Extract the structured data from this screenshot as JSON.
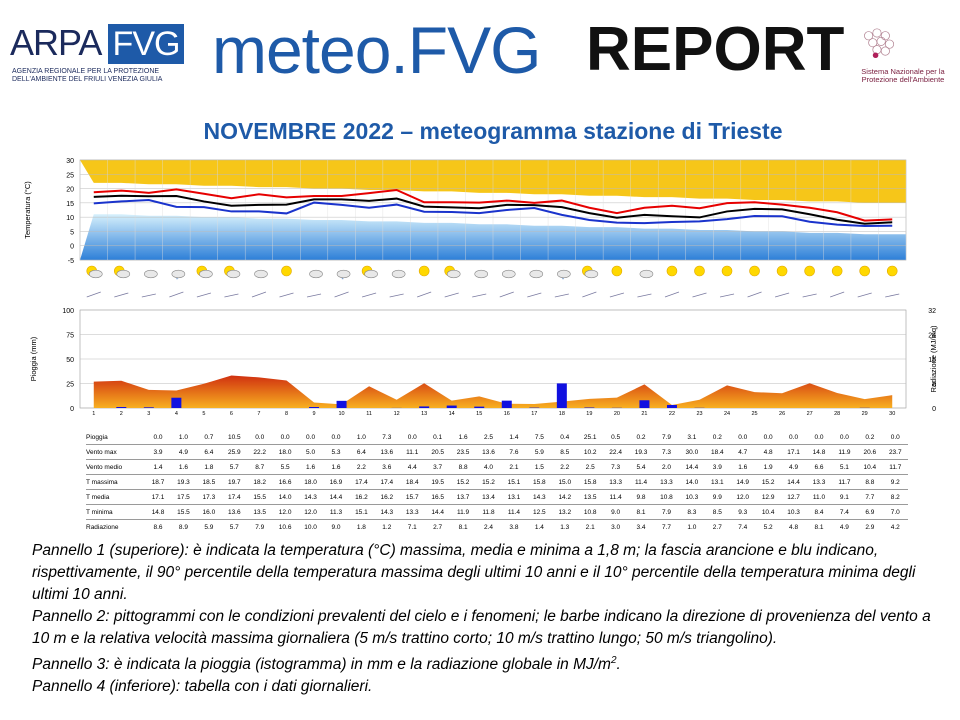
{
  "header": {
    "arpa_word": "ARPA",
    "fvg_box": "FVG",
    "arpa_subtitle": "agenzia regionale per la protezione dell'ambiente del friuli venezia giulia",
    "title_meteo": "meteo.FVG",
    "title_report": "REPORT",
    "snpa_text": "Sistema Nazionale per la Protezione dell'Ambiente"
  },
  "subtitle": "NOVEMBRE 2022 – meteogramma stazione di Trieste",
  "colors": {
    "brand_blue": "#1e5aa8",
    "band_orange": "#f5c000",
    "band_blue": "#6fc2f0",
    "tmax": "#e60000",
    "tmed": "#000000",
    "tmin": "#1a33cc",
    "rain_bar": "#1010e0",
    "radiation_fill": "#f07020"
  },
  "chart_data": [
    {
      "type": "line",
      "ylabel": "Temperatura (°C)",
      "ylim": [
        -5,
        30
      ],
      "yticks": [
        30,
        25,
        20,
        15,
        10,
        5,
        0,
        -5
      ],
      "grid": true,
      "x": [
        1,
        2,
        3,
        4,
        5,
        6,
        7,
        8,
        9,
        10,
        11,
        12,
        13,
        14,
        15,
        16,
        17,
        18,
        19,
        20,
        21,
        22,
        23,
        24,
        25,
        26,
        27,
        28,
        29,
        30
      ],
      "series": [
        {
          "key": "tmax",
          "values": [
            18.7,
            19.3,
            18.5,
            19.7,
            18.2,
            16.6,
            18.0,
            16.9,
            17.4,
            17.4,
            18.4,
            19.5,
            15.2,
            15.2,
            15.1,
            15.8,
            15.0,
            15.8,
            13.3,
            11.4,
            13.3,
            14.0,
            13.1,
            14.9,
            15.2,
            14.4,
            13.3,
            11.7,
            8.8,
            9.2
          ]
        },
        {
          "key": "tmed",
          "values": [
            17.1,
            17.5,
            17.3,
            17.4,
            15.5,
            14.0,
            14.3,
            14.4,
            16.2,
            16.2,
            15.7,
            16.5,
            13.7,
            13.4,
            13.1,
            14.3,
            14.2,
            13.5,
            11.4,
            9.8,
            10.8,
            10.3,
            9.9,
            12.0,
            12.9,
            12.7,
            11.0,
            9.1,
            7.7,
            8.2
          ]
        },
        {
          "key": "tmin",
          "values": [
            14.8,
            15.5,
            16.0,
            13.6,
            13.5,
            12.0,
            12.0,
            11.3,
            15.1,
            14.3,
            13.3,
            14.4,
            11.9,
            11.8,
            11.4,
            12.5,
            13.2,
            10.8,
            9.0,
            8.1,
            7.9,
            8.3,
            8.5,
            9.3,
            10.4,
            10.3,
            8.4,
            7.4,
            6.9,
            7.0
          ]
        },
        {
          "key": "p90_tmax_band",
          "values": [
            22,
            22,
            21.5,
            21.5,
            21,
            21,
            20.5,
            20.5,
            20,
            20,
            19.5,
            19.5,
            19,
            19,
            18.5,
            18.5,
            18,
            18,
            17.5,
            17.5,
            17,
            17,
            16.5,
            16.5,
            16,
            16,
            15.5,
            15.5,
            15,
            15
          ]
        },
        {
          "key": "p10_tmin_band",
          "values": [
            11,
            11,
            10.5,
            10.5,
            10,
            10,
            9.5,
            9.5,
            9,
            9,
            8.5,
            8.5,
            8,
            8,
            7.5,
            7.5,
            7,
            7,
            6.5,
            6.5,
            6,
            6,
            5.5,
            5.5,
            5,
            5,
            4.5,
            4.5,
            4,
            4
          ]
        }
      ]
    },
    {
      "type": "bar",
      "ylabel": "Pioggia (mm)",
      "y2label": "Radiazione (MJ/mq)",
      "ylim": [
        0,
        100
      ],
      "yticks": [
        100,
        75,
        50,
        25,
        0
      ],
      "y2lim": [
        0,
        32
      ],
      "y2ticks": [
        32,
        24,
        16,
        8,
        0
      ],
      "categories": [
        "1",
        "2",
        "3",
        "4",
        "5",
        "6",
        "7",
        "8",
        "9",
        "10",
        "11",
        "12",
        "13",
        "14",
        "15",
        "16",
        "17",
        "18",
        "19",
        "20",
        "21",
        "22",
        "23",
        "24",
        "25",
        "26",
        "27",
        "28",
        "29",
        "30"
      ],
      "series": [
        {
          "key": "pioggia",
          "values": [
            0.0,
            1.0,
            0.7,
            10.5,
            0.0,
            0.0,
            0.0,
            0.0,
            1.0,
            7.3,
            0.0,
            0.1,
            1.6,
            2.5,
            1.4,
            7.5,
            0.4,
            25.1,
            0.5,
            0.2,
            7.9,
            3.1,
            0.2,
            0.0,
            0.0,
            0.0,
            0.0,
            0.0,
            0.2,
            0.0
          ]
        },
        {
          "key": "radiazione",
          "values": [
            8.6,
            8.9,
            5.9,
            5.7,
            7.9,
            10.6,
            10.0,
            9.0,
            1.8,
            1.2,
            7.1,
            2.7,
            8.1,
            2.4,
            3.8,
            1.4,
            1.3,
            2.1,
            3.0,
            3.4,
            7.7,
            1.0,
            2.7,
            7.4,
            5.2,
            4.8,
            8.1,
            4.9,
            2.9,
            4.2
          ]
        }
      ]
    },
    {
      "type": "table",
      "columns": [
        "1",
        "2",
        "3",
        "4",
        "5",
        "6",
        "7",
        "8",
        "9",
        "10",
        "11",
        "12",
        "13",
        "14",
        "15",
        "16",
        "17",
        "18",
        "19",
        "20",
        "21",
        "22",
        "23",
        "24",
        "25",
        "26",
        "27",
        "28",
        "29",
        "30"
      ],
      "rows": [
        {
          "label": "Pioggia",
          "values": [
            "0.0",
            "1.0",
            "0.7",
            "10.5",
            "0.0",
            "0.0",
            "0.0",
            "0.0",
            "1.0",
            "7.3",
            "0.0",
            "0.1",
            "1.6",
            "2.5",
            "1.4",
            "7.5",
            "0.4",
            "25.1",
            "0.5",
            "0.2",
            "7.9",
            "3.1",
            "0.2",
            "0.0",
            "0.0",
            "0.0",
            "0.0",
            "0.0",
            "0.2",
            "0.0"
          ]
        },
        {
          "label": "Vento max",
          "values": [
            "3.9",
            "4.9",
            "6.4",
            "25.9",
            "22.2",
            "18.0",
            "5.0",
            "5.3",
            "6.4",
            "13.6",
            "11.1",
            "20.5",
            "23.5",
            "13.6",
            "7.6",
            "5.9",
            "8.5",
            "10.2",
            "22.4",
            "19.3",
            "7.3",
            "30.0",
            "18.4",
            "4.7",
            "4.8",
            "17.1",
            "14.8",
            "11.9",
            "20.6",
            "23.7"
          ]
        },
        {
          "label": "Vento medio",
          "values": [
            "1.4",
            "1.6",
            "1.8",
            "5.7",
            "8.7",
            "5.5",
            "1.6",
            "1.6",
            "2.2",
            "3.6",
            "4.4",
            "3.7",
            "8.8",
            "4.0",
            "2.1",
            "1.5",
            "2.2",
            "2.5",
            "7.3",
            "5.4",
            "2.0",
            "14.4",
            "3.9",
            "1.6",
            "1.9",
            "4.9",
            "6.6",
            "5.1",
            "10.4",
            "11.7"
          ]
        },
        {
          "label": "T massima",
          "values": [
            "18.7",
            "19.3",
            "18.5",
            "19.7",
            "18.2",
            "16.6",
            "18.0",
            "16.9",
            "17.4",
            "17.4",
            "18.4",
            "19.5",
            "15.2",
            "15.2",
            "15.1",
            "15.8",
            "15.0",
            "15.8",
            "13.3",
            "11.4",
            "13.3",
            "14.0",
            "13.1",
            "14.9",
            "15.2",
            "14.4",
            "13.3",
            "11.7",
            "8.8",
            "9.2"
          ]
        },
        {
          "label": "T media",
          "values": [
            "17.1",
            "17.5",
            "17.3",
            "17.4",
            "15.5",
            "14.0",
            "14.3",
            "14.4",
            "16.2",
            "16.2",
            "15.7",
            "16.5",
            "13.7",
            "13.4",
            "13.1",
            "14.3",
            "14.2",
            "13.5",
            "11.4",
            "9.8",
            "10.8",
            "10.3",
            "9.9",
            "12.0",
            "12.9",
            "12.7",
            "11.0",
            "9.1",
            "7.7",
            "8.2"
          ]
        },
        {
          "label": "T minima",
          "values": [
            "14.8",
            "15.5",
            "16.0",
            "13.6",
            "13.5",
            "12.0",
            "12.0",
            "11.3",
            "15.1",
            "14.3",
            "13.3",
            "14.4",
            "11.9",
            "11.8",
            "11.4",
            "12.5",
            "13.2",
            "10.8",
            "9.0",
            "8.1",
            "7.9",
            "8.3",
            "8.5",
            "9.3",
            "10.4",
            "10.3",
            "8.4",
            "7.4",
            "6.9",
            "7.0"
          ]
        },
        {
          "label": "Radiazione",
          "values": [
            "8.6",
            "8.9",
            "5.9",
            "5.7",
            "7.9",
            "10.6",
            "10.0",
            "9.0",
            "1.8",
            "1.2",
            "7.1",
            "2.7",
            "8.1",
            "2.4",
            "3.8",
            "1.4",
            "1.3",
            "2.1",
            "3.0",
            "3.4",
            "7.7",
            "1.0",
            "2.7",
            "7.4",
            "5.2",
            "4.8",
            "8.1",
            "4.9",
            "2.9",
            "4.2"
          ]
        }
      ]
    }
  ],
  "weather_icons": [
    "sun-cloud",
    "sun-cloud",
    "cloud",
    "cloud-rain",
    "sun-cloud",
    "sun-cloud",
    "cloud",
    "sun",
    "cloud",
    "cloud-rain",
    "sun-cloud",
    "cloud",
    "sun",
    "sun-cloud",
    "cloud",
    "cloud",
    "cloud",
    "cloud-rain",
    "sun-cloud",
    "sun",
    "cloud",
    "sun",
    "sun",
    "sun",
    "sun",
    "sun",
    "sun",
    "sun",
    "sun",
    "sun"
  ],
  "notes": [
    "Pannello 1 (superiore): è indicata la temperatura (°C) massima, media e minima a 1,8 m; la fascia arancione e blu indicano, rispettivamente, il 90° percentile della temperatura massima degli ultimi 10 anni e il 10° percentile della temperatura minima degli ultimi 10 anni.",
    "Pannello 2: pittogrammi con le condizioni prevalenti del cielo e i fenomeni; le barbe indicano la direzione di provenienza del vento a 10 m e la relativa velocità massima giornaliera (5 m/s trattino corto; 10 m/s trattino lungo; 50 m/s triangolino).",
    "Pannello 3: è indicata la pioggia (istogramma) in mm e la radiazione globale in MJ/m",
    "2",
    ".",
    "Pannello 4 (inferiore): tabella con i dati giornalieri."
  ]
}
